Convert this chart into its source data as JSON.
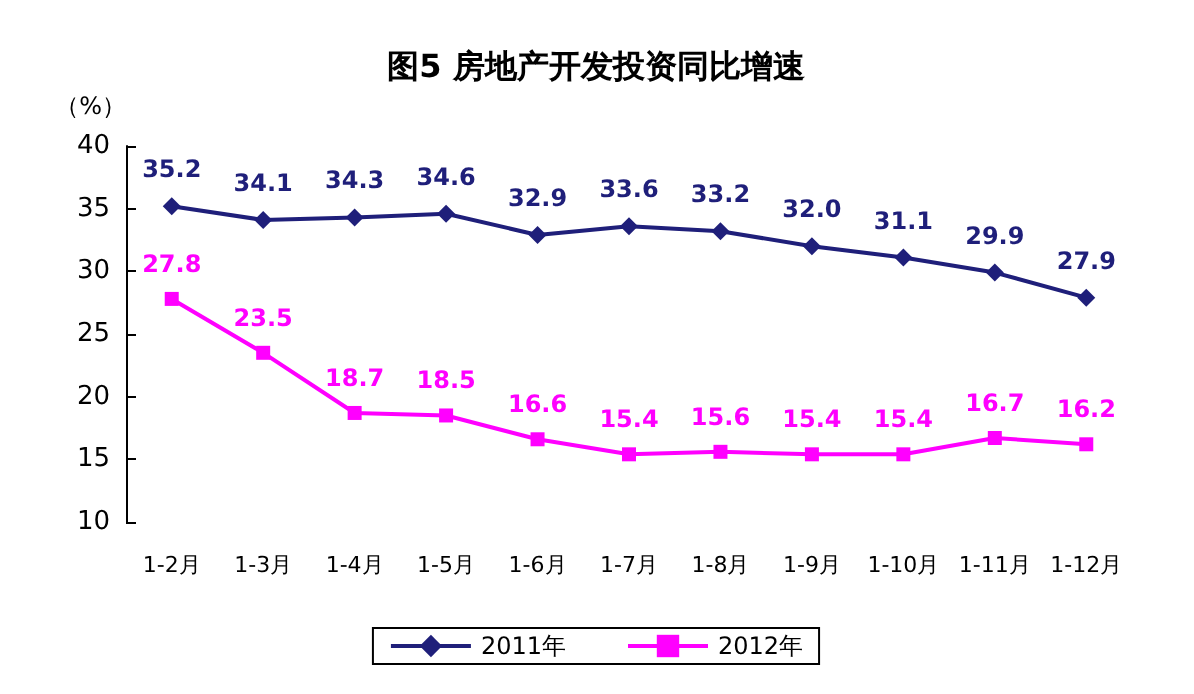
{
  "chart_data": {
    "type": "line",
    "title": "图5 房地产开发投资同比增速",
    "ylabel": "（%）",
    "categories": [
      "1-2月",
      "1-3月",
      "1-4月",
      "1-5月",
      "1-6月",
      "1-7月",
      "1-8月",
      "1-9月",
      "1-10月",
      "1-11月",
      "1-12月"
    ],
    "series": [
      {
        "name": "2011年",
        "color": "#1f1f7a",
        "marker": "diamond",
        "values": [
          35.2,
          34.1,
          34.3,
          34.6,
          32.9,
          33.6,
          33.2,
          32.0,
          31.1,
          29.9,
          27.9
        ],
        "value_labels": [
          "35.2",
          "34.1",
          "34.3",
          "34.6",
          "32.9",
          "33.6",
          "33.2",
          "32.0",
          "31.1",
          "29.9",
          "27.9"
        ]
      },
      {
        "name": "2012年",
        "color": "#ff00ff",
        "marker": "square",
        "values": [
          27.8,
          23.5,
          18.7,
          18.5,
          16.6,
          15.4,
          15.6,
          15.4,
          15.4,
          16.7,
          16.2
        ],
        "value_labels": [
          "27.8",
          "23.5",
          "18.7",
          "18.5",
          "16.6",
          "15.4",
          "15.6",
          "15.4",
          "15.4",
          "16.7",
          "16.2"
        ]
      }
    ],
    "ylim": [
      10,
      40
    ],
    "yticks": [
      10,
      15,
      20,
      25,
      30,
      35,
      40
    ],
    "grid": false,
    "legend": "bottom",
    "line_style": "solid"
  }
}
